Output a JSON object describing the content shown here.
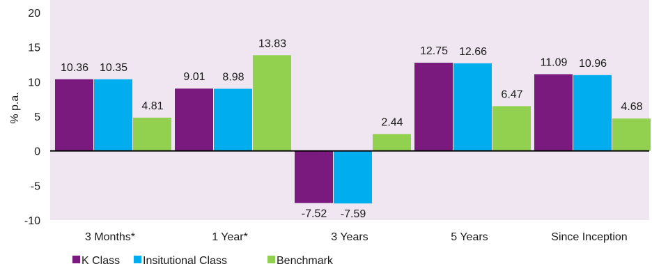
{
  "chart_data": {
    "type": "bar",
    "title": "",
    "xlabel": "",
    "ylabel": "% p.a.",
    "ylim": [
      -10,
      20
    ],
    "yticks": [
      20,
      15,
      10,
      5,
      0,
      -5,
      -10
    ],
    "grid": false,
    "legend_position": "bottom-left",
    "categories": [
      "3 Months*",
      "1 Year*",
      "3 Years",
      "5 Years",
      "Since Inception"
    ],
    "series": [
      {
        "name": "K Class",
        "values": [
          10.36,
          9.01,
          -7.52,
          12.75,
          11.09
        ],
        "labels": [
          "10.36",
          "9.01",
          "-7.52",
          "12.75",
          "11.09"
        ]
      },
      {
        "name": "Insitutional Class",
        "values": [
          10.35,
          8.98,
          -7.59,
          12.66,
          10.96
        ],
        "labels": [
          "10.35",
          "8.98",
          "-7.59",
          "12.66",
          "10.96"
        ]
      },
      {
        "name": "Benchmark",
        "values": [
          4.81,
          13.83,
          2.44,
          6.47,
          4.68
        ],
        "labels": [
          "4.81",
          "13.83",
          "2.44",
          "6.47",
          "4.68"
        ]
      }
    ]
  },
  "colors": {
    "plot_background": "#f0e6f1",
    "K Class": "#7a1a7e",
    "Insitutional Class": "#00aeef",
    "Benchmark": "#92d050",
    "axis": "#000000"
  }
}
